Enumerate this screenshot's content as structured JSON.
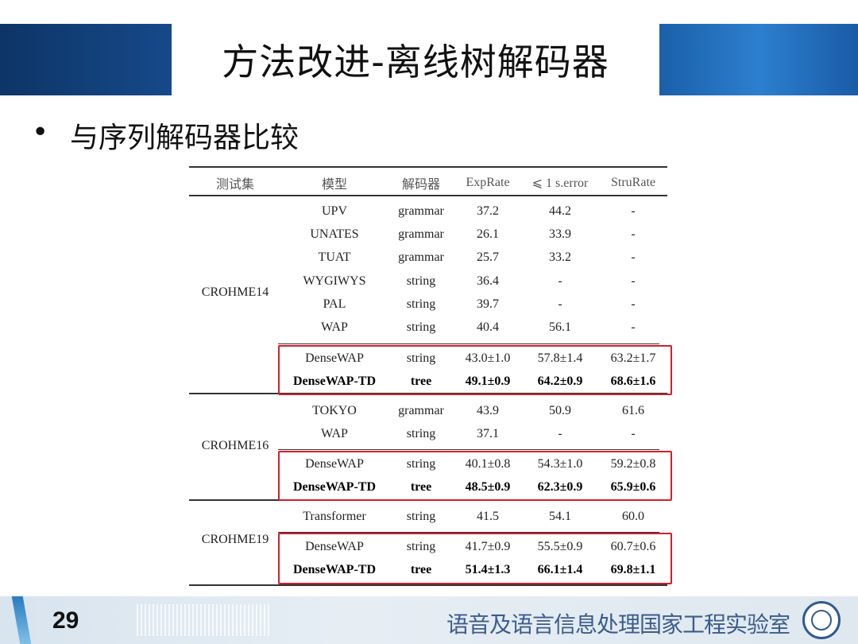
{
  "slide": {
    "title": "方法改进-离线树解码器",
    "bullet": "与序列解码器比较",
    "page_number": "29",
    "lab_name": "语音及语言信息处理国家工程实验室"
  },
  "table": {
    "headers": [
      "测试集",
      "模型",
      "解码器",
      "ExpRate",
      "⩽ 1 s.error",
      "StruRate"
    ],
    "groups": [
      {
        "dataset": "CROHME14",
        "rows": [
          {
            "model": "UPV",
            "decoder": "grammar",
            "exprate": "37.2",
            "serror": "44.2",
            "strurate": "-"
          },
          {
            "model": "UNATES",
            "decoder": "grammar",
            "exprate": "26.1",
            "serror": "33.9",
            "strurate": "-"
          },
          {
            "model": "TUAT",
            "decoder": "grammar",
            "exprate": "25.7",
            "serror": "33.2",
            "strurate": "-"
          },
          {
            "model": "WYGIWYS",
            "decoder": "string",
            "exprate": "36.4",
            "serror": "-",
            "strurate": "-"
          },
          {
            "model": "PAL",
            "decoder": "string",
            "exprate": "39.7",
            "serror": "-",
            "strurate": "-"
          },
          {
            "model": "WAP",
            "decoder": "string",
            "exprate": "40.4",
            "serror": "56.1",
            "strurate": "-"
          },
          {
            "model": "DenseWAP",
            "decoder": "string",
            "exprate": "43.0±1.0",
            "serror": "57.8±1.4",
            "strurate": "63.2±1.7",
            "highlight": true
          },
          {
            "model": "DenseWAP-TD",
            "decoder": "tree",
            "exprate": "49.1±0.9",
            "serror": "64.2±0.9",
            "strurate": "68.6±1.6",
            "highlight": true,
            "bold": true
          }
        ]
      },
      {
        "dataset": "CROHME16",
        "rows": [
          {
            "model": "TOKYO",
            "decoder": "grammar",
            "exprate": "43.9",
            "serror": "50.9",
            "strurate": "61.6"
          },
          {
            "model": "WAP",
            "decoder": "string",
            "exprate": "37.1",
            "serror": "-",
            "strurate": "-"
          },
          {
            "model": "DenseWAP",
            "decoder": "string",
            "exprate": "40.1±0.8",
            "serror": "54.3±1.0",
            "strurate": "59.2±0.8",
            "highlight": true
          },
          {
            "model": "DenseWAP-TD",
            "decoder": "tree",
            "exprate": "48.5±0.9",
            "serror": "62.3±0.9",
            "strurate": "65.9±0.6",
            "highlight": true,
            "bold": true
          }
        ]
      },
      {
        "dataset": "CROHME19",
        "rows": [
          {
            "model": "Transformer",
            "decoder": "string",
            "exprate": "41.5",
            "serror": "54.1",
            "strurate": "60.0"
          },
          {
            "model": "DenseWAP",
            "decoder": "string",
            "exprate": "41.7±0.9",
            "serror": "55.5±0.9",
            "strurate": "60.7±0.6",
            "highlight": true
          },
          {
            "model": "DenseWAP-TD",
            "decoder": "tree",
            "exprate": "51.4±1.3",
            "serror": "66.1±1.4",
            "strurate": "69.8±1.1",
            "highlight": true,
            "bold": true
          }
        ]
      }
    ],
    "highlight_color": "#d0202a"
  }
}
